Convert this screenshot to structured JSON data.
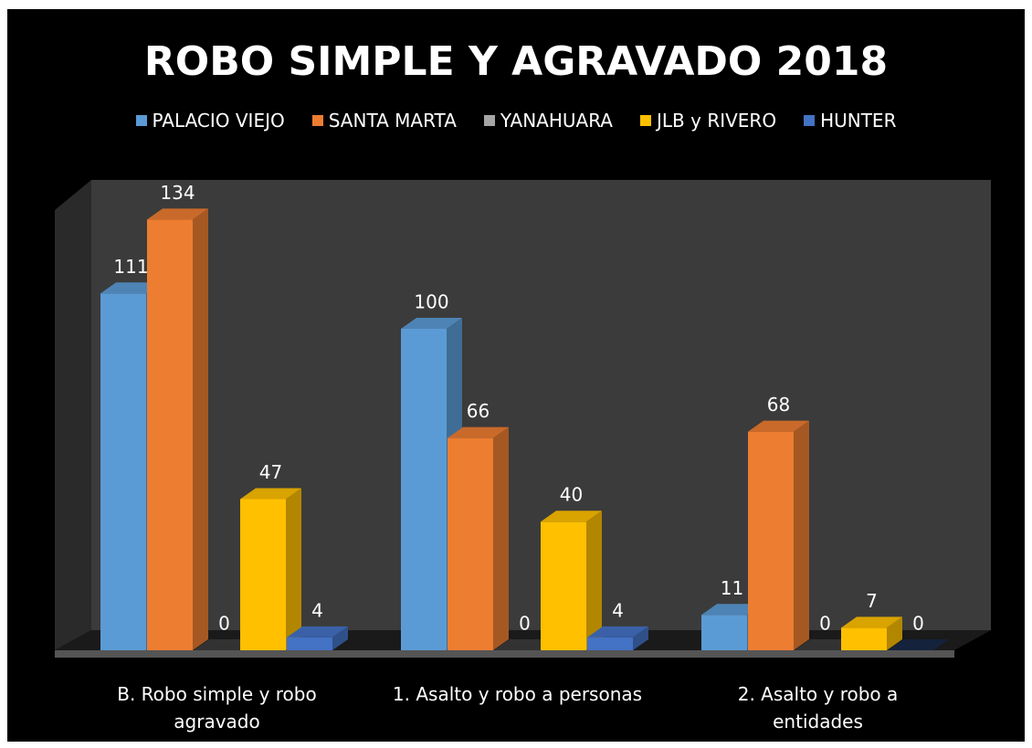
{
  "chart_data": {
    "type": "bar3d",
    "title": "ROBO SIMPLE Y AGRAVADO 2018",
    "categories": [
      "B. Robo simple y robo agravado",
      "1. Asalto y robo a personas",
      "2. Asalto y robo a entidades"
    ],
    "series": [
      {
        "name": "PALACIO VIEJO",
        "color": "#5b9bd5",
        "values": [
          111,
          100,
          11
        ]
      },
      {
        "name": "SANTA MARTA",
        "color": "#ed7d31",
        "values": [
          134,
          66,
          68
        ]
      },
      {
        "name": "YANAHUARA",
        "color": "#a5a5a5",
        "values": [
          0,
          0,
          0
        ]
      },
      {
        "name": "JLB y RIVERO",
        "color": "#ffc000",
        "values": [
          47,
          40,
          7
        ]
      },
      {
        "name": "HUNTER",
        "color": "#4472c4",
        "values": [
          4,
          4,
          0
        ]
      }
    ],
    "legend": "top"
  }
}
